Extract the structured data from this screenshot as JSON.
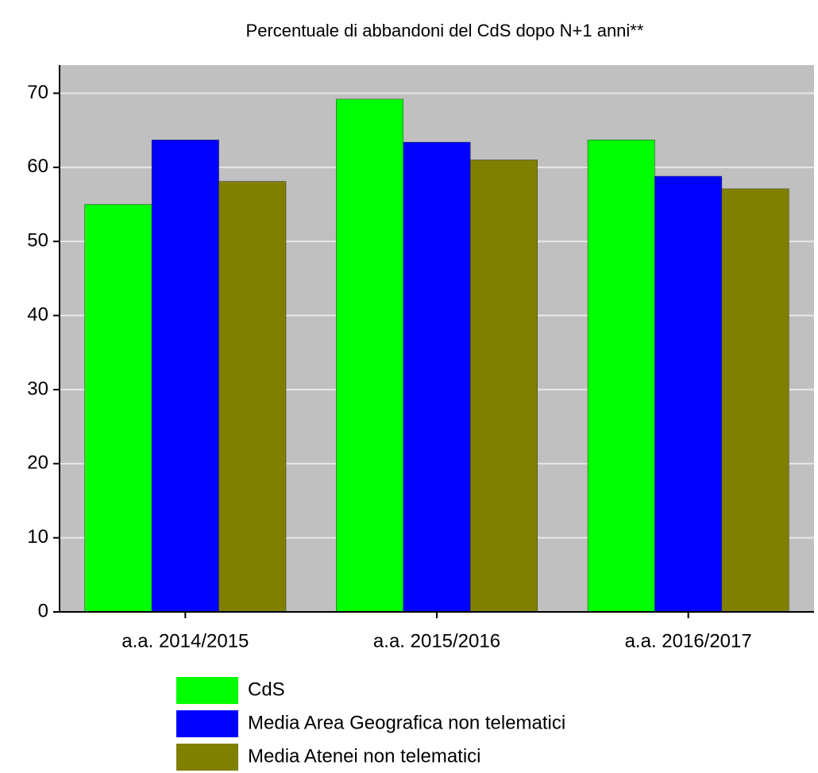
{
  "chart_data": {
    "type": "bar",
    "title": "Percentuale di abbandoni del CdS dopo N+1 anni**",
    "categories": [
      "a.a. 2014/2015",
      "a.a. 2015/2016",
      "a.a. 2016/2017"
    ],
    "series": [
      {
        "name": "CdS",
        "color": "#00ff00",
        "values": [
          55,
          69.2,
          63.7
        ]
      },
      {
        "name": "Media Area Geografica non telematici",
        "color": "#0000ff",
        "values": [
          63.7,
          63.4,
          58.8
        ]
      },
      {
        "name": "Media Atenei non telematici",
        "color": "#808000",
        "values": [
          58.1,
          61,
          57.1
        ]
      }
    ],
    "ylim": [
      0,
      73.8
    ],
    "yticks": [
      0,
      10,
      20,
      30,
      40,
      50,
      60,
      70
    ],
    "grid": true
  }
}
